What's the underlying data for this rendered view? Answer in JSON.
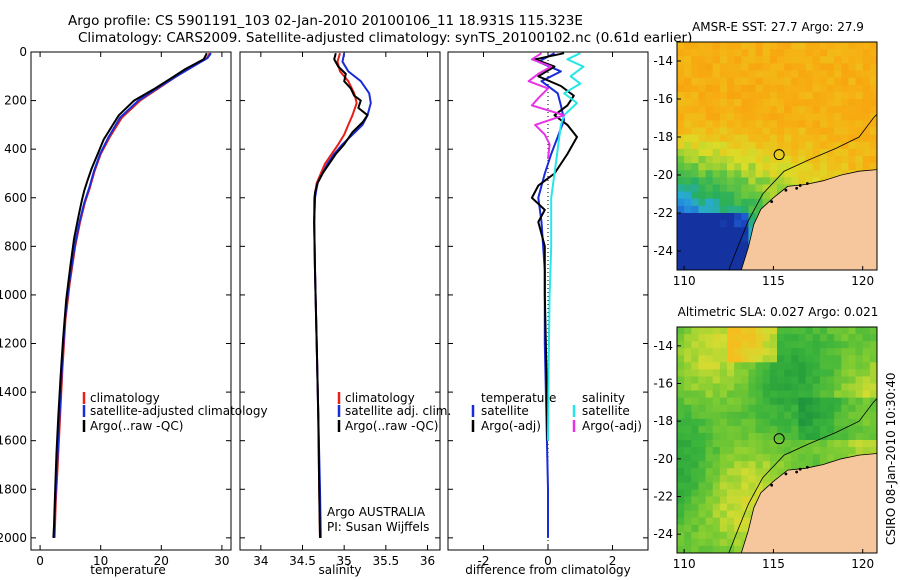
{
  "header": {
    "title_line1": "Argo profile: CS 5901191_103 02-Jan-2010 20100106_11 18.931S 115.323E",
    "title_line2": "Climatology: CARS2009. Satellite-adjusted climatology: synTS_20100102.nc (0.61d earlier)"
  },
  "side_label": "CSIRO 08-Jan-2010 10:30:40",
  "colors": {
    "climatology": "#e8201a",
    "satellite": "#1a2cd8",
    "argo": "#000000",
    "sal_satellite": "#27e6e6",
    "sal_argo": "#e633e6",
    "land": "#f6c79d"
  },
  "chart_data": [
    {
      "type": "line",
      "name": "temperature",
      "xlabel": "temperature",
      "ylabel": "",
      "xlim": [
        -1.5,
        31.5
      ],
      "ylim": [
        2050,
        0
      ],
      "x_ticks": [
        0,
        10,
        20,
        30
      ],
      "y_ticks": [
        0,
        200,
        400,
        600,
        800,
        1000,
        1200,
        1400,
        1600,
        1800,
        2000
      ],
      "legend": [
        "climatology",
        "satellite-adjusted climatology",
        "Argo(..raw -QC)"
      ],
      "series": [
        {
          "name": "climatology",
          "color_key": "climatology",
          "points": [
            [
              28,
              5
            ],
            [
              27.5,
              25
            ],
            [
              25,
              60
            ],
            [
              22.5,
              100
            ],
            [
              19.5,
              150
            ],
            [
              16.5,
              200
            ],
            [
              13.5,
              270
            ],
            [
              11.5,
              350
            ],
            [
              10,
              420
            ],
            [
              9,
              490
            ],
            [
              8.2,
              560
            ],
            [
              7.4,
              620
            ],
            [
              6.6,
              700
            ],
            [
              5.8,
              800
            ],
            [
              4.9,
              950
            ],
            [
              4.2,
              1100
            ],
            [
              3.7,
              1300
            ],
            [
              3.3,
              1500
            ],
            [
              2.9,
              1700
            ],
            [
              2.6,
              1850
            ],
            [
              2.4,
              2000
            ]
          ]
        },
        {
          "name": "satellite-adjusted climatology",
          "color_key": "satellite",
          "points": [
            [
              28.2,
              5
            ],
            [
              27.6,
              25
            ],
            [
              25.2,
              60
            ],
            [
              22.5,
              100
            ],
            [
              19.3,
              150
            ],
            [
              16.2,
              200
            ],
            [
              13.2,
              270
            ],
            [
              11.3,
              350
            ],
            [
              9.9,
              420
            ],
            [
              8.9,
              490
            ],
            [
              8.1,
              560
            ],
            [
              7.3,
              620
            ],
            [
              6.5,
              700
            ],
            [
              5.7,
              800
            ],
            [
              4.8,
              950
            ],
            [
              4.1,
              1100
            ],
            [
              3.6,
              1300
            ],
            [
              3.2,
              1500
            ],
            [
              2.8,
              1700
            ],
            [
              2.5,
              1850
            ],
            [
              2.3,
              2000
            ]
          ]
        },
        {
          "name": "Argo(..raw -QC)",
          "color_key": "argo",
          "points": [
            [
              27.5,
              5
            ],
            [
              27,
              30
            ],
            [
              24,
              70
            ],
            [
              21.5,
              110
            ],
            [
              19,
              150
            ],
            [
              15.5,
              200
            ],
            [
              13,
              260
            ],
            [
              12,
              300
            ],
            [
              10.5,
              360
            ],
            [
              9.5,
              420
            ],
            [
              8.5,
              480
            ],
            [
              7.8,
              530
            ],
            [
              7.3,
              570
            ],
            [
              6.9,
              610
            ],
            [
              6.3,
              680
            ],
            [
              5.6,
              770
            ],
            [
              5,
              880
            ],
            [
              4.3,
              1020
            ],
            [
              3.8,
              1180
            ],
            [
              3.4,
              1330
            ],
            [
              3,
              1500
            ],
            [
              2.7,
              1650
            ],
            [
              2.5,
              1800
            ],
            [
              2.3,
              1950
            ],
            [
              2.2,
              2000
            ]
          ]
        }
      ]
    },
    {
      "type": "line",
      "name": "salinity",
      "xlabel": "salinity",
      "ylabel": "",
      "xlim": [
        33.75,
        36.15
      ],
      "ylim": [
        2050,
        0
      ],
      "x_ticks": [
        34,
        34.5,
        35,
        35.5,
        36
      ],
      "legend": [
        "climatology",
        "satellite adj. clim.",
        "Argo(..raw -QC)"
      ],
      "annotation": [
        "Argo AUSTRALIA",
        "PI: Susan Wijffels"
      ],
      "series": [
        {
          "name": "climatology",
          "color_key": "climatology",
          "points": [
            [
              34.95,
              5
            ],
            [
              34.92,
              40
            ],
            [
              34.95,
              80
            ],
            [
              35.05,
              120
            ],
            [
              35.12,
              170
            ],
            [
              35.15,
              210
            ],
            [
              35.1,
              260
            ],
            [
              35.05,
              300
            ],
            [
              35.0,
              340
            ],
            [
              34.93,
              380
            ],
            [
              34.85,
              420
            ],
            [
              34.77,
              460
            ],
            [
              34.72,
              500
            ],
            [
              34.67,
              540
            ],
            [
              34.64,
              600
            ],
            [
              34.64,
              700
            ],
            [
              34.65,
              900
            ],
            [
              34.67,
              1200
            ],
            [
              34.69,
              1500
            ],
            [
              34.7,
              1800
            ],
            [
              34.71,
              2000
            ]
          ]
        },
        {
          "name": "satellite adj. clim.",
          "color_key": "satellite",
          "points": [
            [
              35.0,
              5
            ],
            [
              34.98,
              40
            ],
            [
              35.05,
              80
            ],
            [
              35.2,
              120
            ],
            [
              35.3,
              170
            ],
            [
              35.32,
              210
            ],
            [
              35.28,
              260
            ],
            [
              35.22,
              300
            ],
            [
              35.1,
              340
            ],
            [
              34.98,
              380
            ],
            [
              34.88,
              420
            ],
            [
              34.8,
              460
            ],
            [
              34.74,
              500
            ],
            [
              34.68,
              540
            ],
            [
              34.65,
              600
            ],
            [
              34.64,
              700
            ],
            [
              34.65,
              900
            ],
            [
              34.67,
              1200
            ],
            [
              34.69,
              1500
            ],
            [
              34.71,
              1800
            ],
            [
              34.72,
              2000
            ]
          ]
        },
        {
          "name": "Argo(..raw -QC)",
          "color_key": "argo",
          "points": [
            [
              34.9,
              5
            ],
            [
              34.88,
              30
            ],
            [
              34.93,
              60
            ],
            [
              35.02,
              90
            ],
            [
              35.0,
              120
            ],
            [
              35.08,
              150
            ],
            [
              35.12,
              180
            ],
            [
              35.2,
              200
            ],
            [
              35.17,
              230
            ],
            [
              35.28,
              260
            ],
            [
              35.22,
              290
            ],
            [
              35.1,
              330
            ],
            [
              35.0,
              380
            ],
            [
              34.9,
              420
            ],
            [
              34.82,
              460
            ],
            [
              34.74,
              500
            ],
            [
              34.68,
              540
            ],
            [
              34.65,
              580
            ],
            [
              34.64,
              700
            ],
            [
              34.65,
              900
            ],
            [
              34.67,
              1200
            ],
            [
              34.69,
              1500
            ],
            [
              34.7,
              1800
            ],
            [
              34.71,
              2000
            ]
          ]
        }
      ]
    },
    {
      "type": "line",
      "name": "difference",
      "xlabel": "difference from climatology",
      "ylabel": "",
      "xlim": [
        -3.1,
        3.1
      ],
      "ylim": [
        2050,
        0
      ],
      "x_ticks": [
        -2,
        0,
        2
      ],
      "legend_left_title": "temperature",
      "legend_left": [
        "satellite",
        "Argo(-adj)"
      ],
      "legend_right_title": "salinity",
      "legend_right": [
        "satellite",
        "Argo(-adj)"
      ],
      "series": [
        {
          "name": "temperature satellite",
          "color_key": "satellite",
          "points": [
            [
              0.2,
              5
            ],
            [
              -0.3,
              40
            ],
            [
              0.4,
              80
            ],
            [
              -0.2,
              120
            ],
            [
              0.3,
              170
            ],
            [
              0.4,
              220
            ],
            [
              0.5,
              280
            ],
            [
              0.3,
              350
            ],
            [
              0.1,
              420
            ],
            [
              -0.1,
              500
            ],
            [
              -0.3,
              600
            ],
            [
              -0.2,
              700
            ],
            [
              -0.1,
              900
            ],
            [
              -0.1,
              1200
            ],
            [
              -0.05,
              1500
            ],
            [
              0,
              1800
            ],
            [
              0,
              2000
            ]
          ]
        },
        {
          "name": "temperature Argo(-adj)",
          "color_key": "argo",
          "points": [
            [
              0.5,
              5
            ],
            [
              -0.4,
              30
            ],
            [
              0.2,
              60
            ],
            [
              -0.3,
              100
            ],
            [
              0.4,
              140
            ],
            [
              0.8,
              180
            ],
            [
              0.6,
              220
            ],
            [
              0.2,
              260
            ],
            [
              0.6,
              300
            ],
            [
              0.9,
              350
            ],
            [
              0.6,
              420
            ],
            [
              0.2,
              500
            ],
            [
              -0.3,
              550
            ],
            [
              -0.5,
              600
            ],
            [
              -0.1,
              650
            ],
            [
              -0.3,
              700
            ],
            [
              -0.1,
              800
            ],
            [
              -0.1,
              1000
            ],
            [
              -0.05,
              1300
            ],
            [
              -0.02,
              1600
            ]
          ]
        },
        {
          "name": "salinity satellite",
          "color_key": "sal_satellite",
          "points": [
            [
              1.0,
              5
            ],
            [
              0.6,
              30
            ],
            [
              1.1,
              60
            ],
            [
              0.7,
              100
            ],
            [
              1.0,
              130
            ],
            [
              0.5,
              170
            ],
            [
              0.9,
              210
            ],
            [
              0.5,
              260
            ],
            [
              0.4,
              300
            ],
            [
              0.3,
              400
            ],
            [
              0.2,
              500
            ],
            [
              0.1,
              600
            ],
            [
              0.1,
              800
            ],
            [
              0.05,
              1000
            ],
            [
              0.02,
              1300
            ],
            [
              0,
              1600
            ]
          ]
        },
        {
          "name": "salinity Argo(-adj)",
          "color_key": "sal_argo",
          "points": [
            [
              -0.2,
              5
            ],
            [
              -0.5,
              30
            ],
            [
              0.1,
              60
            ],
            [
              -0.3,
              90
            ],
            [
              -0.6,
              120
            ],
            [
              0.0,
              150
            ],
            [
              -0.3,
              190
            ],
            [
              -0.5,
              220
            ],
            [
              0.5,
              260
            ],
            [
              -0.4,
              300
            ],
            [
              -0.1,
              340
            ],
            [
              0.05,
              380
            ],
            [
              0,
              440
            ]
          ]
        }
      ]
    },
    {
      "type": "heatmap",
      "name": "sst_map",
      "title": "AMSR-E SST: 27.7 Argo: 27.9",
      "x_ticks": [
        110,
        115,
        120
      ],
      "y_ticks": [
        -14,
        -16,
        -18,
        -20,
        -22,
        -24
      ],
      "xlim": [
        109.6,
        120.8
      ],
      "ylim": [
        -25,
        -13
      ],
      "argo_position": [
        115.32,
        -18.93
      ]
    },
    {
      "type": "heatmap",
      "name": "sla_map",
      "title": "Altimetric SLA: 0.027 Argo: 0.021",
      "x_ticks": [
        110,
        115,
        120
      ],
      "y_ticks": [
        -14,
        -16,
        -18,
        -20,
        -22,
        -24
      ],
      "xlim": [
        109.6,
        120.8
      ],
      "ylim": [
        -25,
        -13
      ],
      "argo_position": [
        115.32,
        -18.93
      ]
    }
  ]
}
